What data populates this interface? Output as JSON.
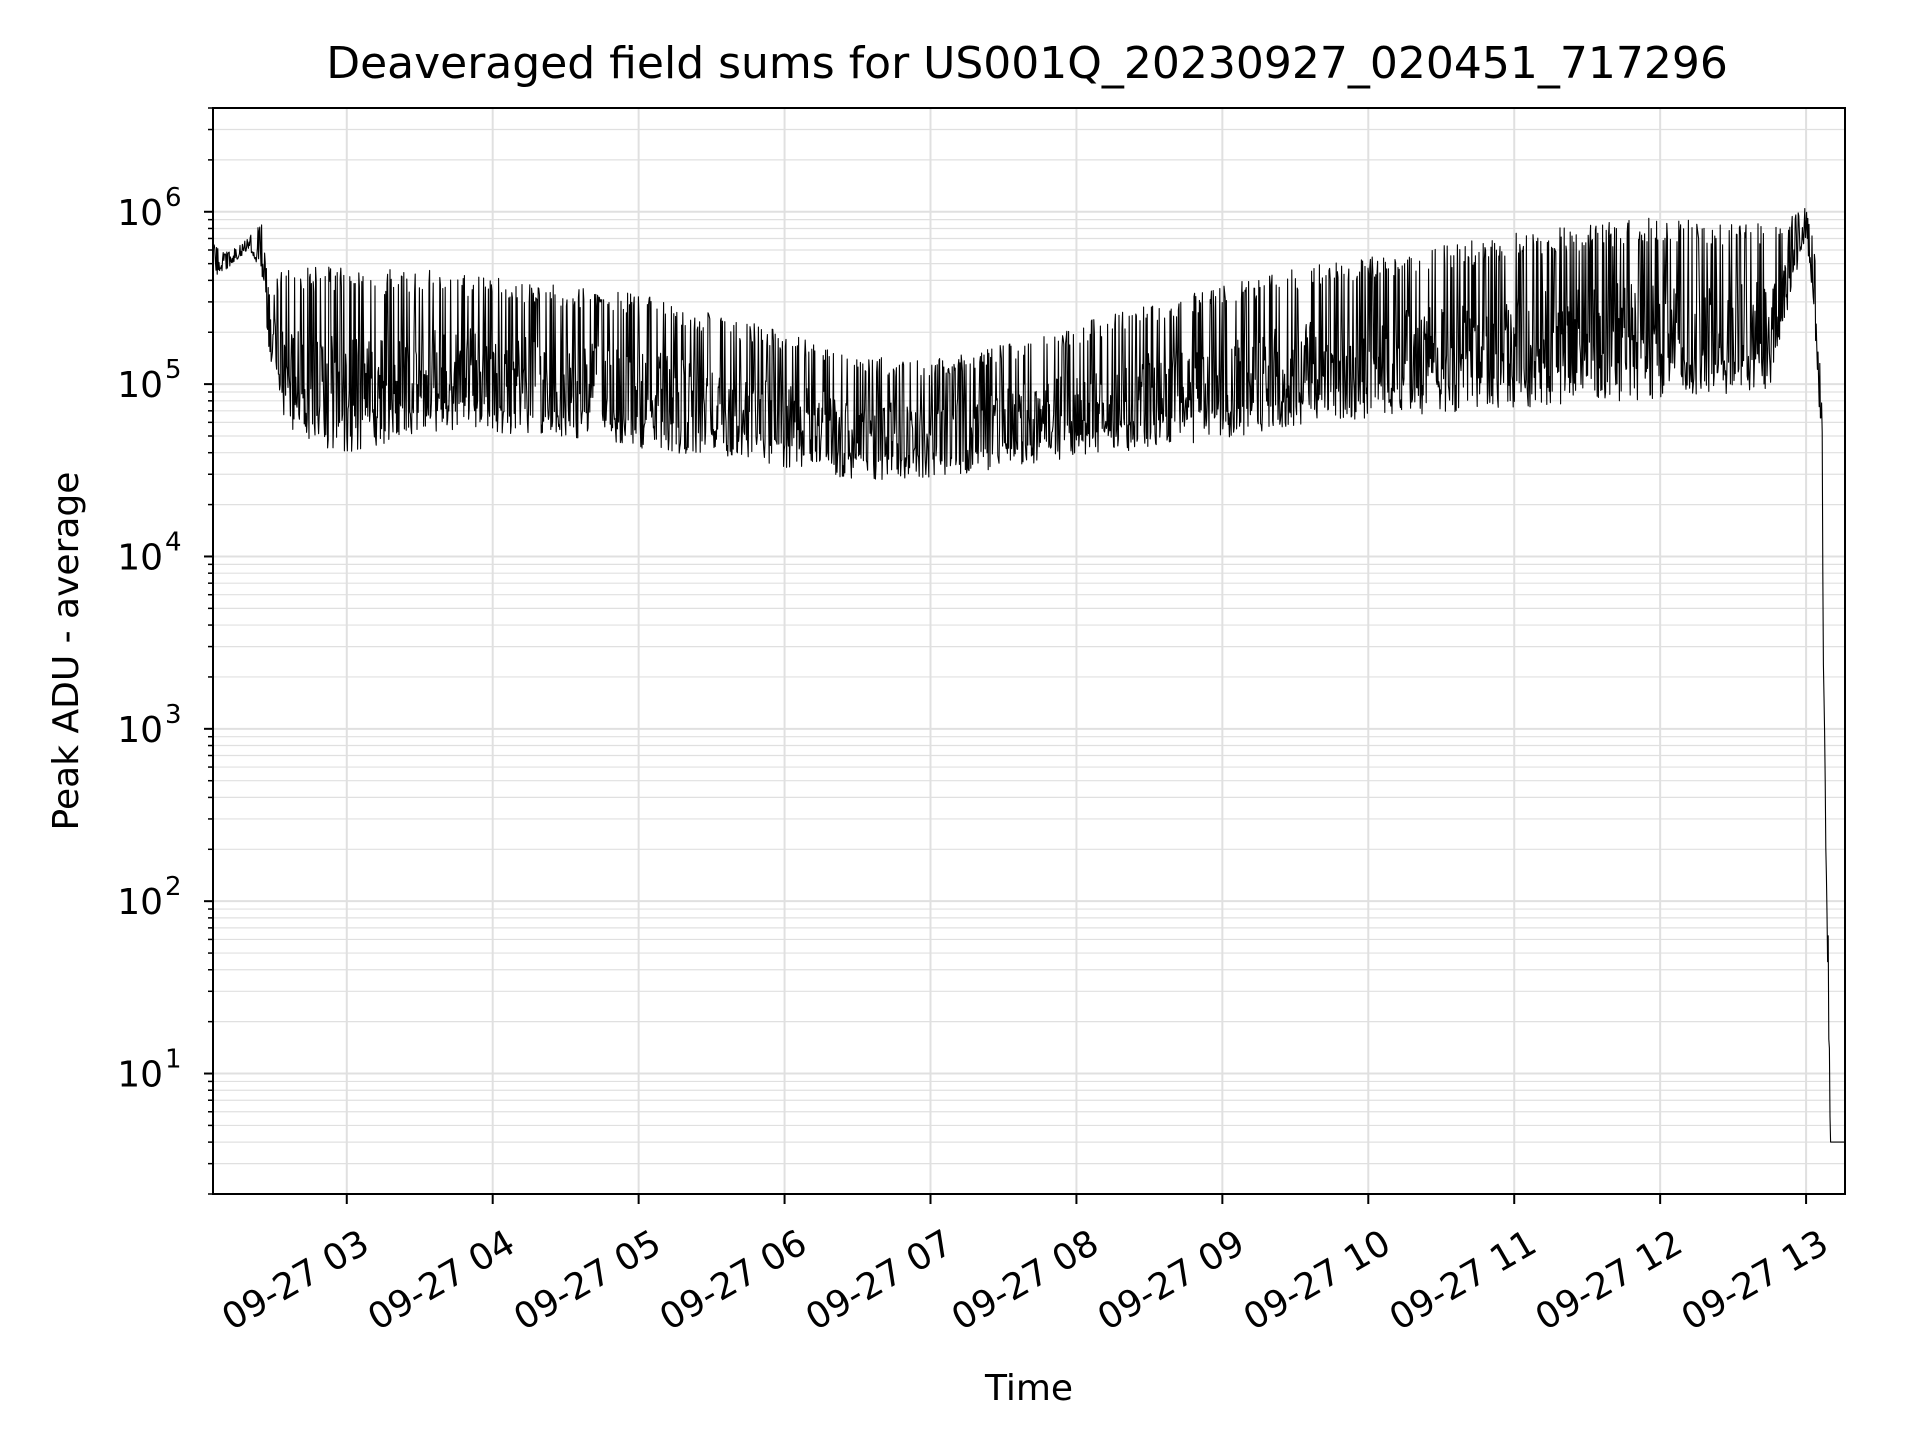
{
  "chart_data": {
    "type": "line",
    "title": "Deaveraged field sums for US001Q_20230927_020451_717296",
    "xlabel": "Time",
    "ylabel": "Peak ADU - average",
    "x_axis": {
      "kind": "time",
      "range": [
        "2023-09-27 02:05",
        "2023-09-27 13:16"
      ],
      "ticks": [
        {
          "t": "2023-09-27 03:00",
          "label": "09-27 03"
        },
        {
          "t": "2023-09-27 04:00",
          "label": "09-27 04"
        },
        {
          "t": "2023-09-27 05:00",
          "label": "09-27 05"
        },
        {
          "t": "2023-09-27 06:00",
          "label": "09-27 06"
        },
        {
          "t": "2023-09-27 07:00",
          "label": "09-27 07"
        },
        {
          "t": "2023-09-27 08:00",
          "label": "09-27 08"
        },
        {
          "t": "2023-09-27 09:00",
          "label": "09-27 09"
        },
        {
          "t": "2023-09-27 10:00",
          "label": "09-27 10"
        },
        {
          "t": "2023-09-27 11:00",
          "label": "09-27 11"
        },
        {
          "t": "2023-09-27 12:00",
          "label": "09-27 12"
        },
        {
          "t": "2023-09-27 13:00",
          "label": "09-27 13"
        }
      ]
    },
    "y_axis": {
      "scale": "log",
      "range": [
        2,
        4000000
      ],
      "ticks": [
        {
          "value": 10,
          "base": "10",
          "exp": "1"
        },
        {
          "value": 100,
          "base": "10",
          "exp": "2"
        },
        {
          "value": 1000,
          "base": "10",
          "exp": "3"
        },
        {
          "value": 10000,
          "base": "10",
          "exp": "4"
        },
        {
          "value": 100000,
          "base": "10",
          "exp": "5"
        },
        {
          "value": 1000000,
          "base": "10",
          "exp": "6"
        }
      ]
    },
    "grid": true,
    "line_color": "#000000",
    "grid_color": "#e0e0e0",
    "series": [
      {
        "x": [
          "2023-09-27 02:05",
          "2023-09-27 02:10",
          "2023-09-27 02:15",
          "2023-09-27 02:20",
          "2023-09-27 02:25",
          "2023-09-27 02:28",
          "2023-09-27 02:33",
          "2023-09-27 02:40",
          "2023-09-27 02:50",
          "2023-09-27 03:00",
          "2023-09-27 03:15",
          "2023-09-27 03:30",
          "2023-09-27 03:45",
          "2023-09-27 04:00",
          "2023-09-27 04:15",
          "2023-09-27 04:30",
          "2023-09-27 04:45",
          "2023-09-27 05:00",
          "2023-09-27 05:15",
          "2023-09-27 05:30",
          "2023-09-27 05:45",
          "2023-09-27 06:00",
          "2023-09-27 06:15",
          "2023-09-27 06:30",
          "2023-09-27 06:45",
          "2023-09-27 07:00",
          "2023-09-27 07:15",
          "2023-09-27 07:30",
          "2023-09-27 07:45",
          "2023-09-27 08:00",
          "2023-09-27 08:15",
          "2023-09-27 08:30",
          "2023-09-27 08:45",
          "2023-09-27 09:00",
          "2023-09-27 09:15",
          "2023-09-27 09:30",
          "2023-09-27 09:45",
          "2023-09-27 10:00",
          "2023-09-27 10:15",
          "2023-09-27 10:30",
          "2023-09-27 10:45",
          "2023-09-27 11:00",
          "2023-09-27 11:15",
          "2023-09-27 11:30",
          "2023-09-27 11:45",
          "2023-09-27 12:00",
          "2023-09-27 12:15",
          "2023-09-27 12:30",
          "2023-09-27 12:45",
          "2023-09-27 12:55",
          "2023-09-27 13:00",
          "2023-09-27 13:03",
          "2023-09-27 13:06",
          "2023-09-27 13:08",
          "2023-09-27 13:10",
          "2023-09-27 13:16"
        ],
        "low": [
          420000,
          460000,
          520000,
          600000,
          450000,
          150000,
          70000,
          45000,
          40000,
          40000,
          45000,
          50000,
          55000,
          52000,
          50000,
          50000,
          45000,
          42000,
          40000,
          38000,
          35000,
          33000,
          30000,
          28000,
          28000,
          28000,
          30000,
          32000,
          35000,
          38000,
          40000,
          42000,
          45000,
          48000,
          52000,
          56000,
          60000,
          62000,
          65000,
          68000,
          70000,
          72000,
          75000,
          78000,
          80000,
          82000,
          85000,
          88000,
          90000,
          400000,
          700000,
          300000,
          50000,
          200,
          4,
          4
        ],
        "high": [
          650000,
          580000,
          620000,
          720000,
          850000,
          350000,
          450000,
          500000,
          480000,
          480000,
          470000,
          460000,
          450000,
          420000,
          400000,
          380000,
          360000,
          330000,
          300000,
          260000,
          230000,
          200000,
          170000,
          150000,
          140000,
          140000,
          150000,
          170000,
          190000,
          220000,
          260000,
          300000,
          330000,
          380000,
          420000,
          470000,
          520000,
          560000,
          600000,
          650000,
          700000,
          750000,
          800000,
          850000,
          900000,
          930000,
          950000,
          900000,
          850000,
          950000,
          1100000,
          700000,
          250000,
          2000,
          4,
          4
        ]
      }
    ]
  }
}
